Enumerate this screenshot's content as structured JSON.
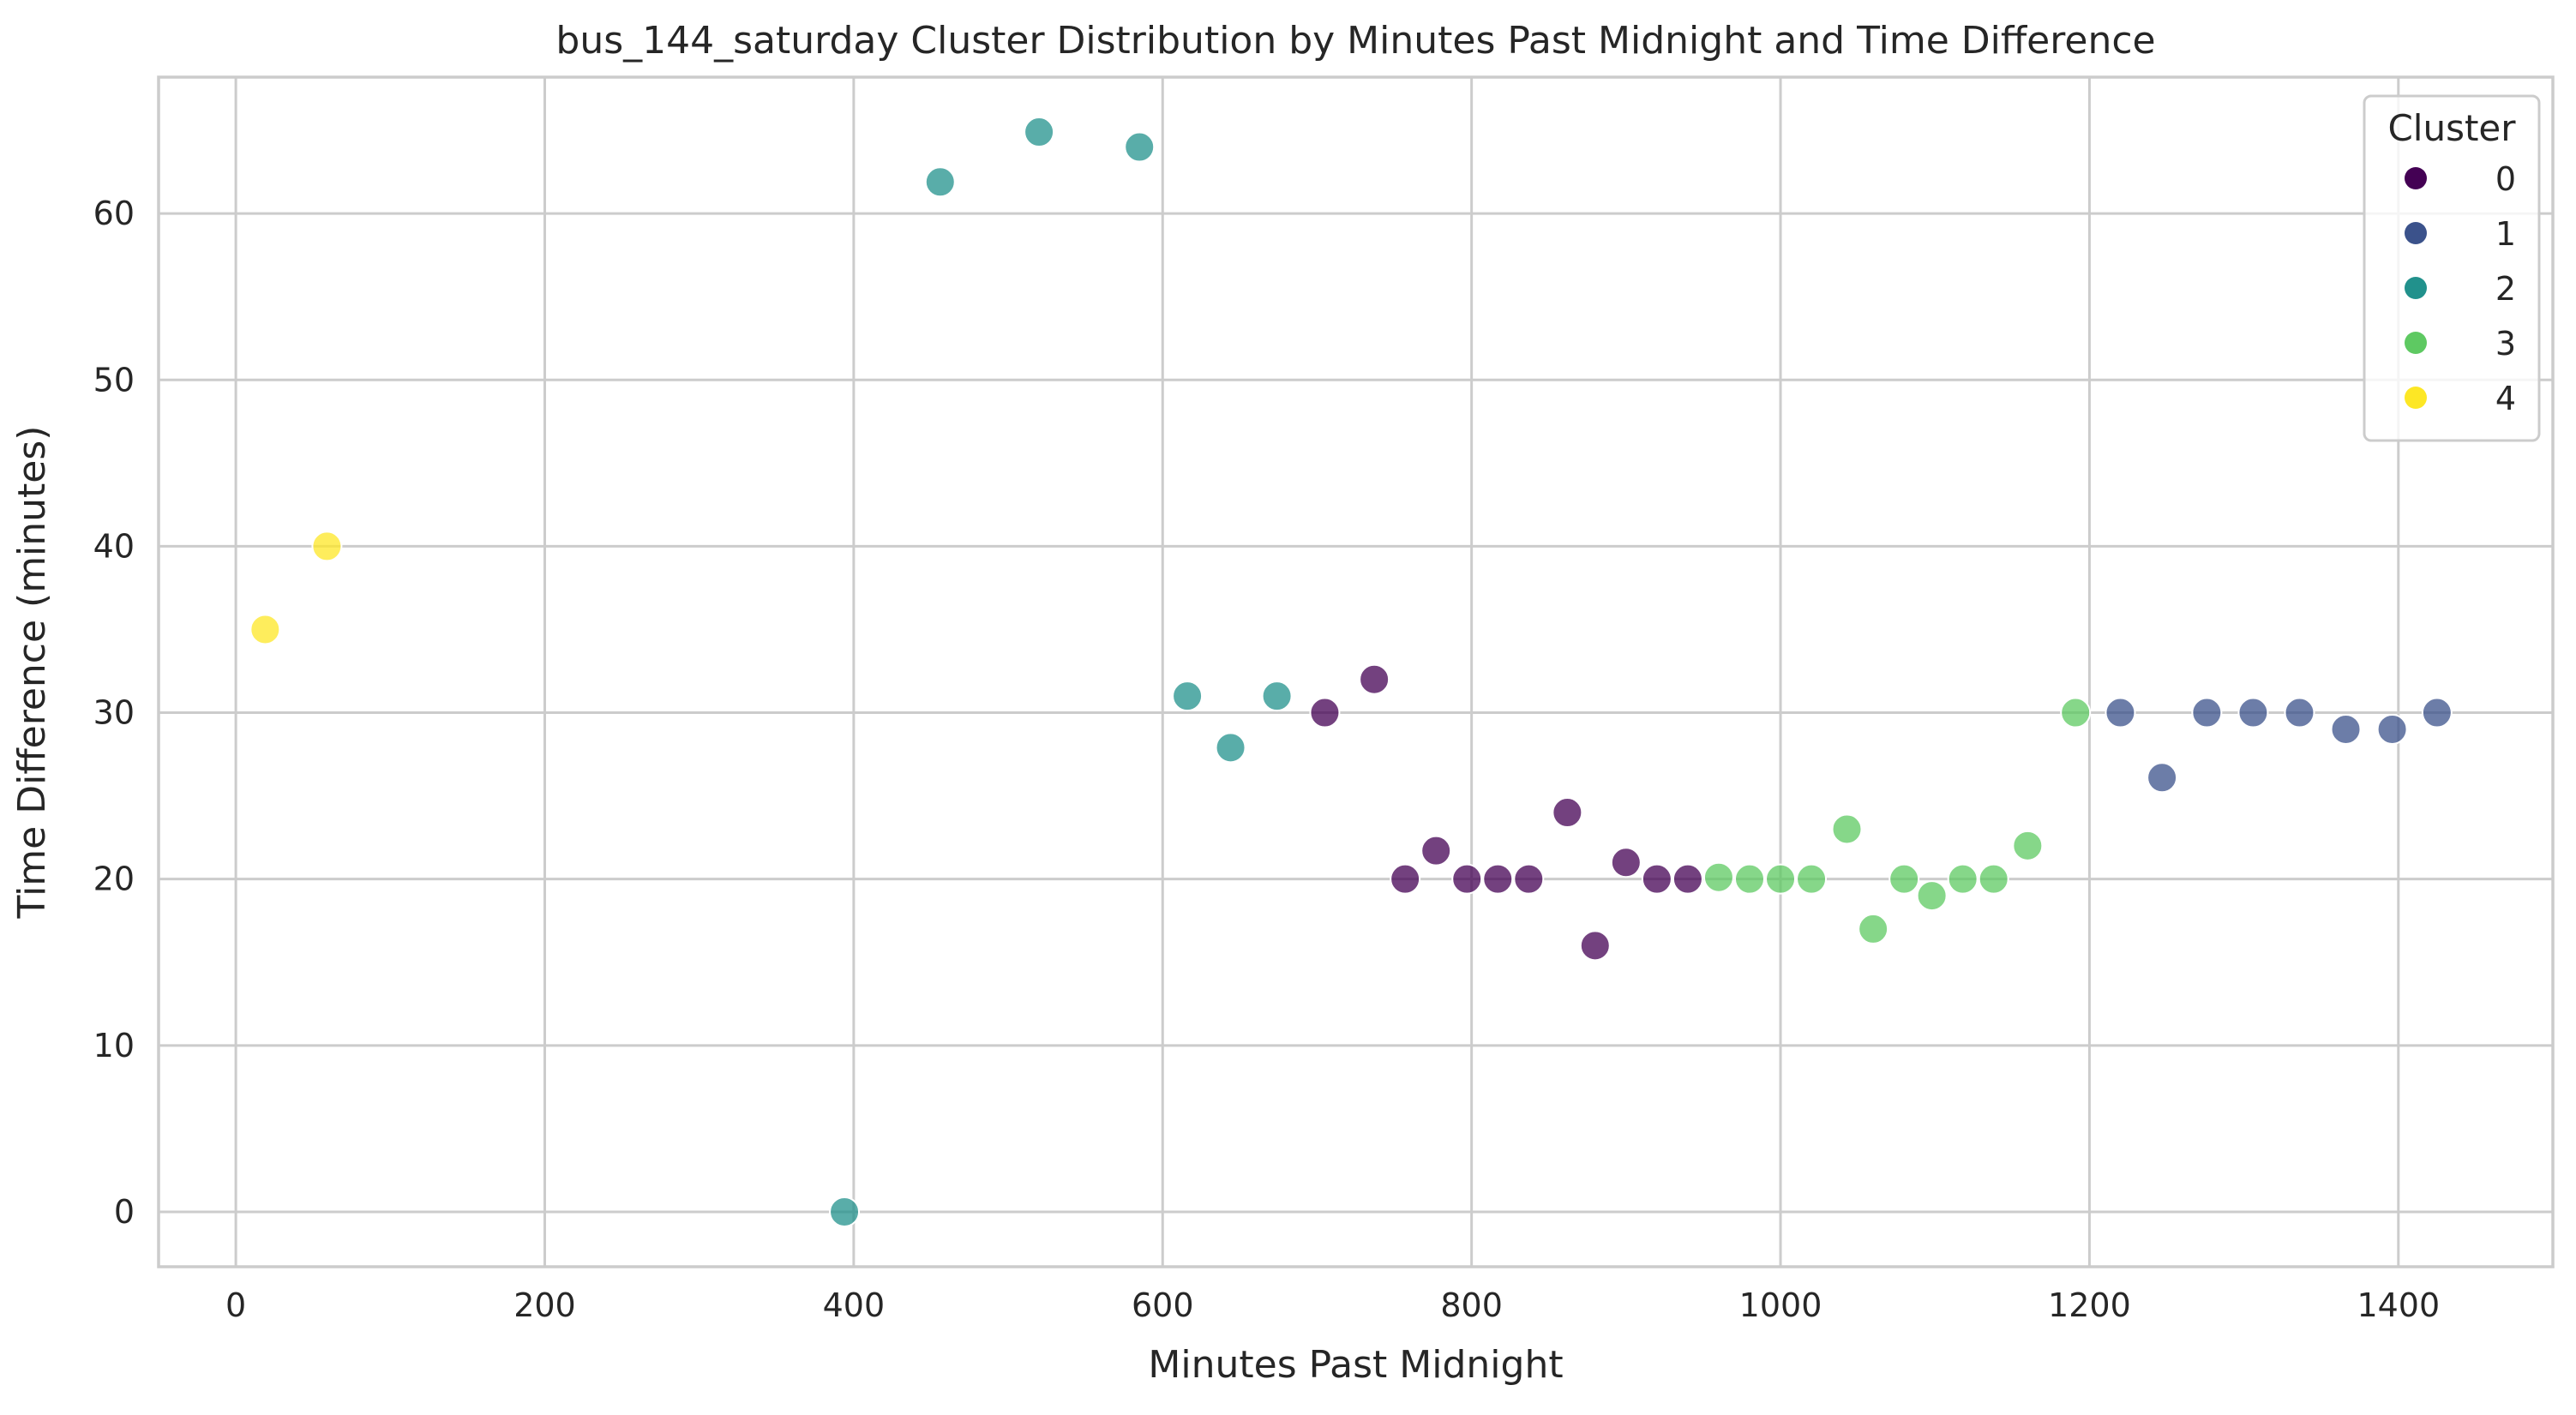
{
  "chart_data": {
    "type": "scatter",
    "title": "bus_144_saturday Cluster Distribution by Minutes Past Midnight and Time Difference",
    "xlabel": "Minutes Past Midnight",
    "ylabel": "Time Difference (minutes)",
    "xlim": [
      -50,
      1500
    ],
    "ylim": [
      -3.3,
      68.2
    ],
    "xticks": [
      0,
      200,
      400,
      600,
      800,
      1000,
      1200,
      1400
    ],
    "yticks": [
      0,
      10,
      20,
      30,
      40,
      50,
      60
    ],
    "grid": true,
    "legend": {
      "title": "Cluster",
      "placement": "top-right",
      "entries": [
        "0",
        "1",
        "2",
        "3",
        "4"
      ]
    },
    "series": [
      {
        "name": "0",
        "color": "#440154",
        "x": [
          705,
          737,
          757,
          777,
          797,
          817,
          837,
          862,
          880,
          900,
          920,
          940
        ],
        "y": [
          30,
          32,
          20,
          21.7,
          20,
          20,
          20,
          24,
          16,
          21,
          20,
          20
        ]
      },
      {
        "name": "1",
        "color": "#3b528b",
        "x": [
          1220,
          1247,
          1276,
          1306,
          1336,
          1366,
          1396,
          1425
        ],
        "y": [
          30,
          26.1,
          30,
          30,
          30,
          29,
          29,
          30
        ]
      },
      {
        "name": "2",
        "color": "#21918c",
        "x": [
          394,
          456,
          520,
          585,
          616,
          644,
          674
        ],
        "y": [
          0,
          61.9,
          64.9,
          64,
          31,
          27.9,
          31
        ]
      },
      {
        "name": "3",
        "color": "#5ec962",
        "x": [
          960,
          980,
          1000,
          1020,
          1043,
          1060,
          1080,
          1098,
          1118,
          1138,
          1160,
          1191
        ],
        "y": [
          20.1,
          20,
          20,
          20,
          23,
          17,
          20,
          19,
          20,
          20,
          22,
          30
        ]
      },
      {
        "name": "4",
        "color": "#fde725",
        "x": [
          19,
          59
        ],
        "y": [
          35,
          40
        ]
      }
    ]
  }
}
